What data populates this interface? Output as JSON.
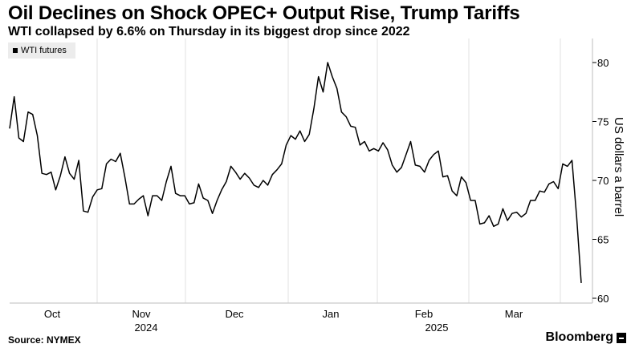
{
  "header": {
    "title": "Oil Declines on Shock OPEC+ Output Rise, Trump Tariffs",
    "subtitle": "WTI collapsed by 6.6% on Thursday in its biggest drop since 2022"
  },
  "footer": {
    "source": "Source: NYMEX",
    "brand": "Bloomberg"
  },
  "chart_data": {
    "type": "line",
    "legend": [
      "WTI futures"
    ],
    "legend_position": "top-left",
    "ylabel": "US dollars a barrel",
    "ylim": [
      60,
      82
    ],
    "yticks": [
      60,
      65,
      70,
      75,
      80
    ],
    "xticks": [
      "Oct",
      "Nov",
      "Dec",
      "Jan",
      "Feb",
      "Mar"
    ],
    "year_labels": [
      "2024",
      "2025"
    ],
    "grid": "vertical",
    "series": [
      {
        "name": "WTI futures",
        "color": "#000000",
        "values": [
          74.4,
          77.1,
          73.6,
          73.3,
          75.8,
          75.6,
          73.8,
          70.6,
          70.5,
          70.7,
          69.2,
          70.4,
          72.0,
          70.6,
          70.1,
          71.7,
          67.4,
          67.3,
          68.6,
          69.2,
          69.3,
          71.4,
          71.8,
          71.6,
          72.3,
          70.3,
          68.0,
          68.0,
          68.4,
          68.7,
          67.0,
          68.7,
          68.7,
          68.3,
          69.9,
          71.2,
          68.9,
          68.7,
          68.7,
          68.0,
          68.1,
          69.7,
          68.5,
          68.3,
          67.2,
          68.3,
          69.2,
          69.9,
          71.2,
          70.7,
          70.1,
          70.6,
          70.2,
          69.6,
          69.4,
          70.0,
          69.6,
          70.5,
          70.9,
          71.4,
          73.0,
          73.8,
          73.5,
          74.2,
          73.3,
          73.9,
          76.1,
          78.8,
          77.5,
          80.0,
          78.8,
          77.8,
          75.8,
          75.4,
          74.6,
          74.5,
          73.0,
          73.3,
          72.5,
          72.7,
          72.5,
          73.2,
          72.6,
          71.3,
          70.7,
          71.1,
          72.2,
          73.3,
          71.3,
          71.2,
          70.7,
          71.7,
          72.2,
          72.5,
          70.3,
          70.4,
          69.1,
          68.7,
          70.3,
          69.8,
          68.3,
          68.3,
          66.3,
          66.4,
          67.0,
          66.1,
          66.3,
          67.6,
          66.6,
          67.2,
          67.3,
          66.9,
          67.2,
          68.3,
          68.3,
          69.1,
          69.0,
          69.7,
          69.9,
          69.3,
          71.4,
          71.2,
          71.7,
          66.9,
          61.3
        ]
      }
    ]
  }
}
